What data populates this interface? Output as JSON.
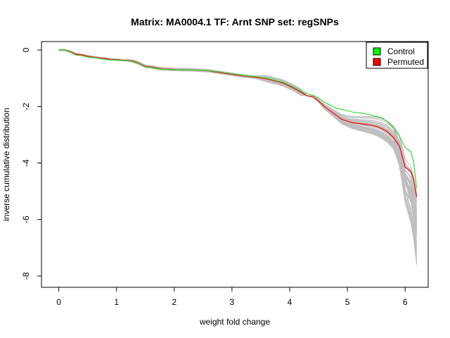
{
  "chart_data": {
    "type": "line",
    "title": "Matrix: MA0004.1 TF: Arnt SNP set: regSNPs",
    "xlabel": "weight fold change",
    "ylabel": "inverse cumulative distribution",
    "xlim": [
      -0.3,
      6.4
    ],
    "ylim": [
      -8.4,
      0.3
    ],
    "x_ticks": [
      0,
      1,
      2,
      3,
      4,
      5,
      6
    ],
    "y_ticks": [
      0,
      -2,
      -4,
      -6,
      -8
    ],
    "grid": false,
    "legend_position": "top-right",
    "legend": [
      {
        "label": "Control",
        "color": "#00ff00"
      },
      {
        "label": "Permuted",
        "color": "#ff0000"
      }
    ],
    "series": [
      {
        "name": "Control",
        "color": "#33dd33",
        "points": [
          [
            0,
            0
          ],
          [
            0.1,
            0
          ],
          [
            0.2,
            -0.08
          ],
          [
            0.3,
            -0.18
          ],
          [
            0.4,
            -0.2
          ],
          [
            0.5,
            -0.25
          ],
          [
            0.6,
            -0.27
          ],
          [
            0.7,
            -0.3
          ],
          [
            0.8,
            -0.33
          ],
          [
            0.9,
            -0.35
          ],
          [
            1.0,
            -0.36
          ],
          [
            1.1,
            -0.37
          ],
          [
            1.2,
            -0.38
          ],
          [
            1.3,
            -0.42
          ],
          [
            1.4,
            -0.5
          ],
          [
            1.5,
            -0.6
          ],
          [
            1.6,
            -0.62
          ],
          [
            1.7,
            -0.66
          ],
          [
            1.8,
            -0.68
          ],
          [
            2.0,
            -0.7
          ],
          [
            2.2,
            -0.7
          ],
          [
            2.4,
            -0.71
          ],
          [
            2.6,
            -0.73
          ],
          [
            2.8,
            -0.78
          ],
          [
            3.0,
            -0.84
          ],
          [
            3.2,
            -0.9
          ],
          [
            3.4,
            -0.94
          ],
          [
            3.6,
            -1.0
          ],
          [
            3.7,
            -1.05
          ],
          [
            3.8,
            -1.1
          ],
          [
            3.9,
            -1.15
          ],
          [
            4.0,
            -1.25
          ],
          [
            4.1,
            -1.35
          ],
          [
            4.2,
            -1.45
          ],
          [
            4.3,
            -1.55
          ],
          [
            4.4,
            -1.6
          ],
          [
            4.5,
            -1.7
          ],
          [
            4.6,
            -1.85
          ],
          [
            4.7,
            -1.95
          ],
          [
            4.8,
            -2.05
          ],
          [
            4.9,
            -2.1
          ],
          [
            5.0,
            -2.15
          ],
          [
            5.1,
            -2.2
          ],
          [
            5.2,
            -2.22
          ],
          [
            5.3,
            -2.25
          ],
          [
            5.4,
            -2.3
          ],
          [
            5.5,
            -2.35
          ],
          [
            5.6,
            -2.4
          ],
          [
            5.7,
            -2.55
          ],
          [
            5.8,
            -2.75
          ],
          [
            5.9,
            -3.05
          ],
          [
            6.0,
            -3.45
          ],
          [
            6.1,
            -3.6
          ],
          [
            6.15,
            -4.0
          ],
          [
            6.2,
            -4.9
          ]
        ]
      },
      {
        "name": "Permuted",
        "color": "#ff0000",
        "points": [
          [
            0,
            0
          ],
          [
            0.1,
            0
          ],
          [
            0.2,
            -0.06
          ],
          [
            0.3,
            -0.15
          ],
          [
            0.4,
            -0.17
          ],
          [
            0.5,
            -0.22
          ],
          [
            0.6,
            -0.25
          ],
          [
            0.7,
            -0.28
          ],
          [
            0.8,
            -0.3
          ],
          [
            0.9,
            -0.33
          ],
          [
            1.0,
            -0.34
          ],
          [
            1.1,
            -0.36
          ],
          [
            1.2,
            -0.37
          ],
          [
            1.3,
            -0.4
          ],
          [
            1.4,
            -0.48
          ],
          [
            1.5,
            -0.58
          ],
          [
            1.6,
            -0.6
          ],
          [
            1.7,
            -0.64
          ],
          [
            1.8,
            -0.67
          ],
          [
            2.0,
            -0.69
          ],
          [
            2.2,
            -0.7
          ],
          [
            2.4,
            -0.71
          ],
          [
            2.6,
            -0.74
          ],
          [
            2.8,
            -0.8
          ],
          [
            3.0,
            -0.86
          ],
          [
            3.2,
            -0.92
          ],
          [
            3.4,
            -0.96
          ],
          [
            3.6,
            -1.02
          ],
          [
            3.7,
            -1.07
          ],
          [
            3.8,
            -1.12
          ],
          [
            3.9,
            -1.18
          ],
          [
            4.0,
            -1.28
          ],
          [
            4.1,
            -1.38
          ],
          [
            4.2,
            -1.5
          ],
          [
            4.3,
            -1.62
          ],
          [
            4.4,
            -1.65
          ],
          [
            4.5,
            -1.8
          ],
          [
            4.6,
            -2.0
          ],
          [
            4.7,
            -2.15
          ],
          [
            4.8,
            -2.3
          ],
          [
            4.9,
            -2.45
          ],
          [
            5.0,
            -2.52
          ],
          [
            5.1,
            -2.58
          ],
          [
            5.2,
            -2.6
          ],
          [
            5.3,
            -2.63
          ],
          [
            5.4,
            -2.66
          ],
          [
            5.5,
            -2.7
          ],
          [
            5.6,
            -2.78
          ],
          [
            5.7,
            -2.9
          ],
          [
            5.8,
            -3.1
          ],
          [
            5.9,
            -3.4
          ],
          [
            6.0,
            -4.15
          ],
          [
            6.1,
            -4.3
          ],
          [
            6.15,
            -4.6
          ],
          [
            6.2,
            -5.2
          ]
        ]
      }
    ]
  }
}
